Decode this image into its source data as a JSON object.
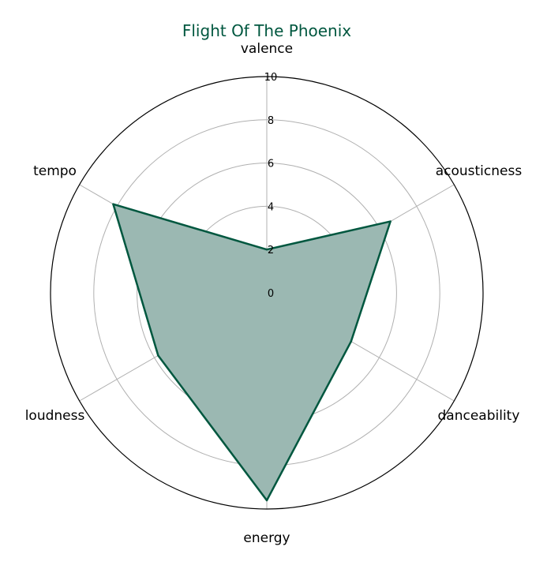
{
  "chart_data": {
    "type": "radar",
    "title": "Flight Of The Phoenix",
    "axes": [
      "valence",
      "acousticness",
      "danceability",
      "energy",
      "loudness",
      "tempo"
    ],
    "series": [
      {
        "values": [
          2,
          6.6,
          4.5,
          9.6,
          5.8,
          8.2
        ]
      }
    ],
    "rlim": [
      0,
      10
    ],
    "r_ticks": [
      "0",
      "2",
      "4",
      "6",
      "8",
      "10"
    ],
    "grid": true,
    "colors": {
      "title": "#00573f",
      "line": "#00573f",
      "fill": "#9bb8b2",
      "grid": "#b0b0b0",
      "outline": "#000000"
    }
  }
}
